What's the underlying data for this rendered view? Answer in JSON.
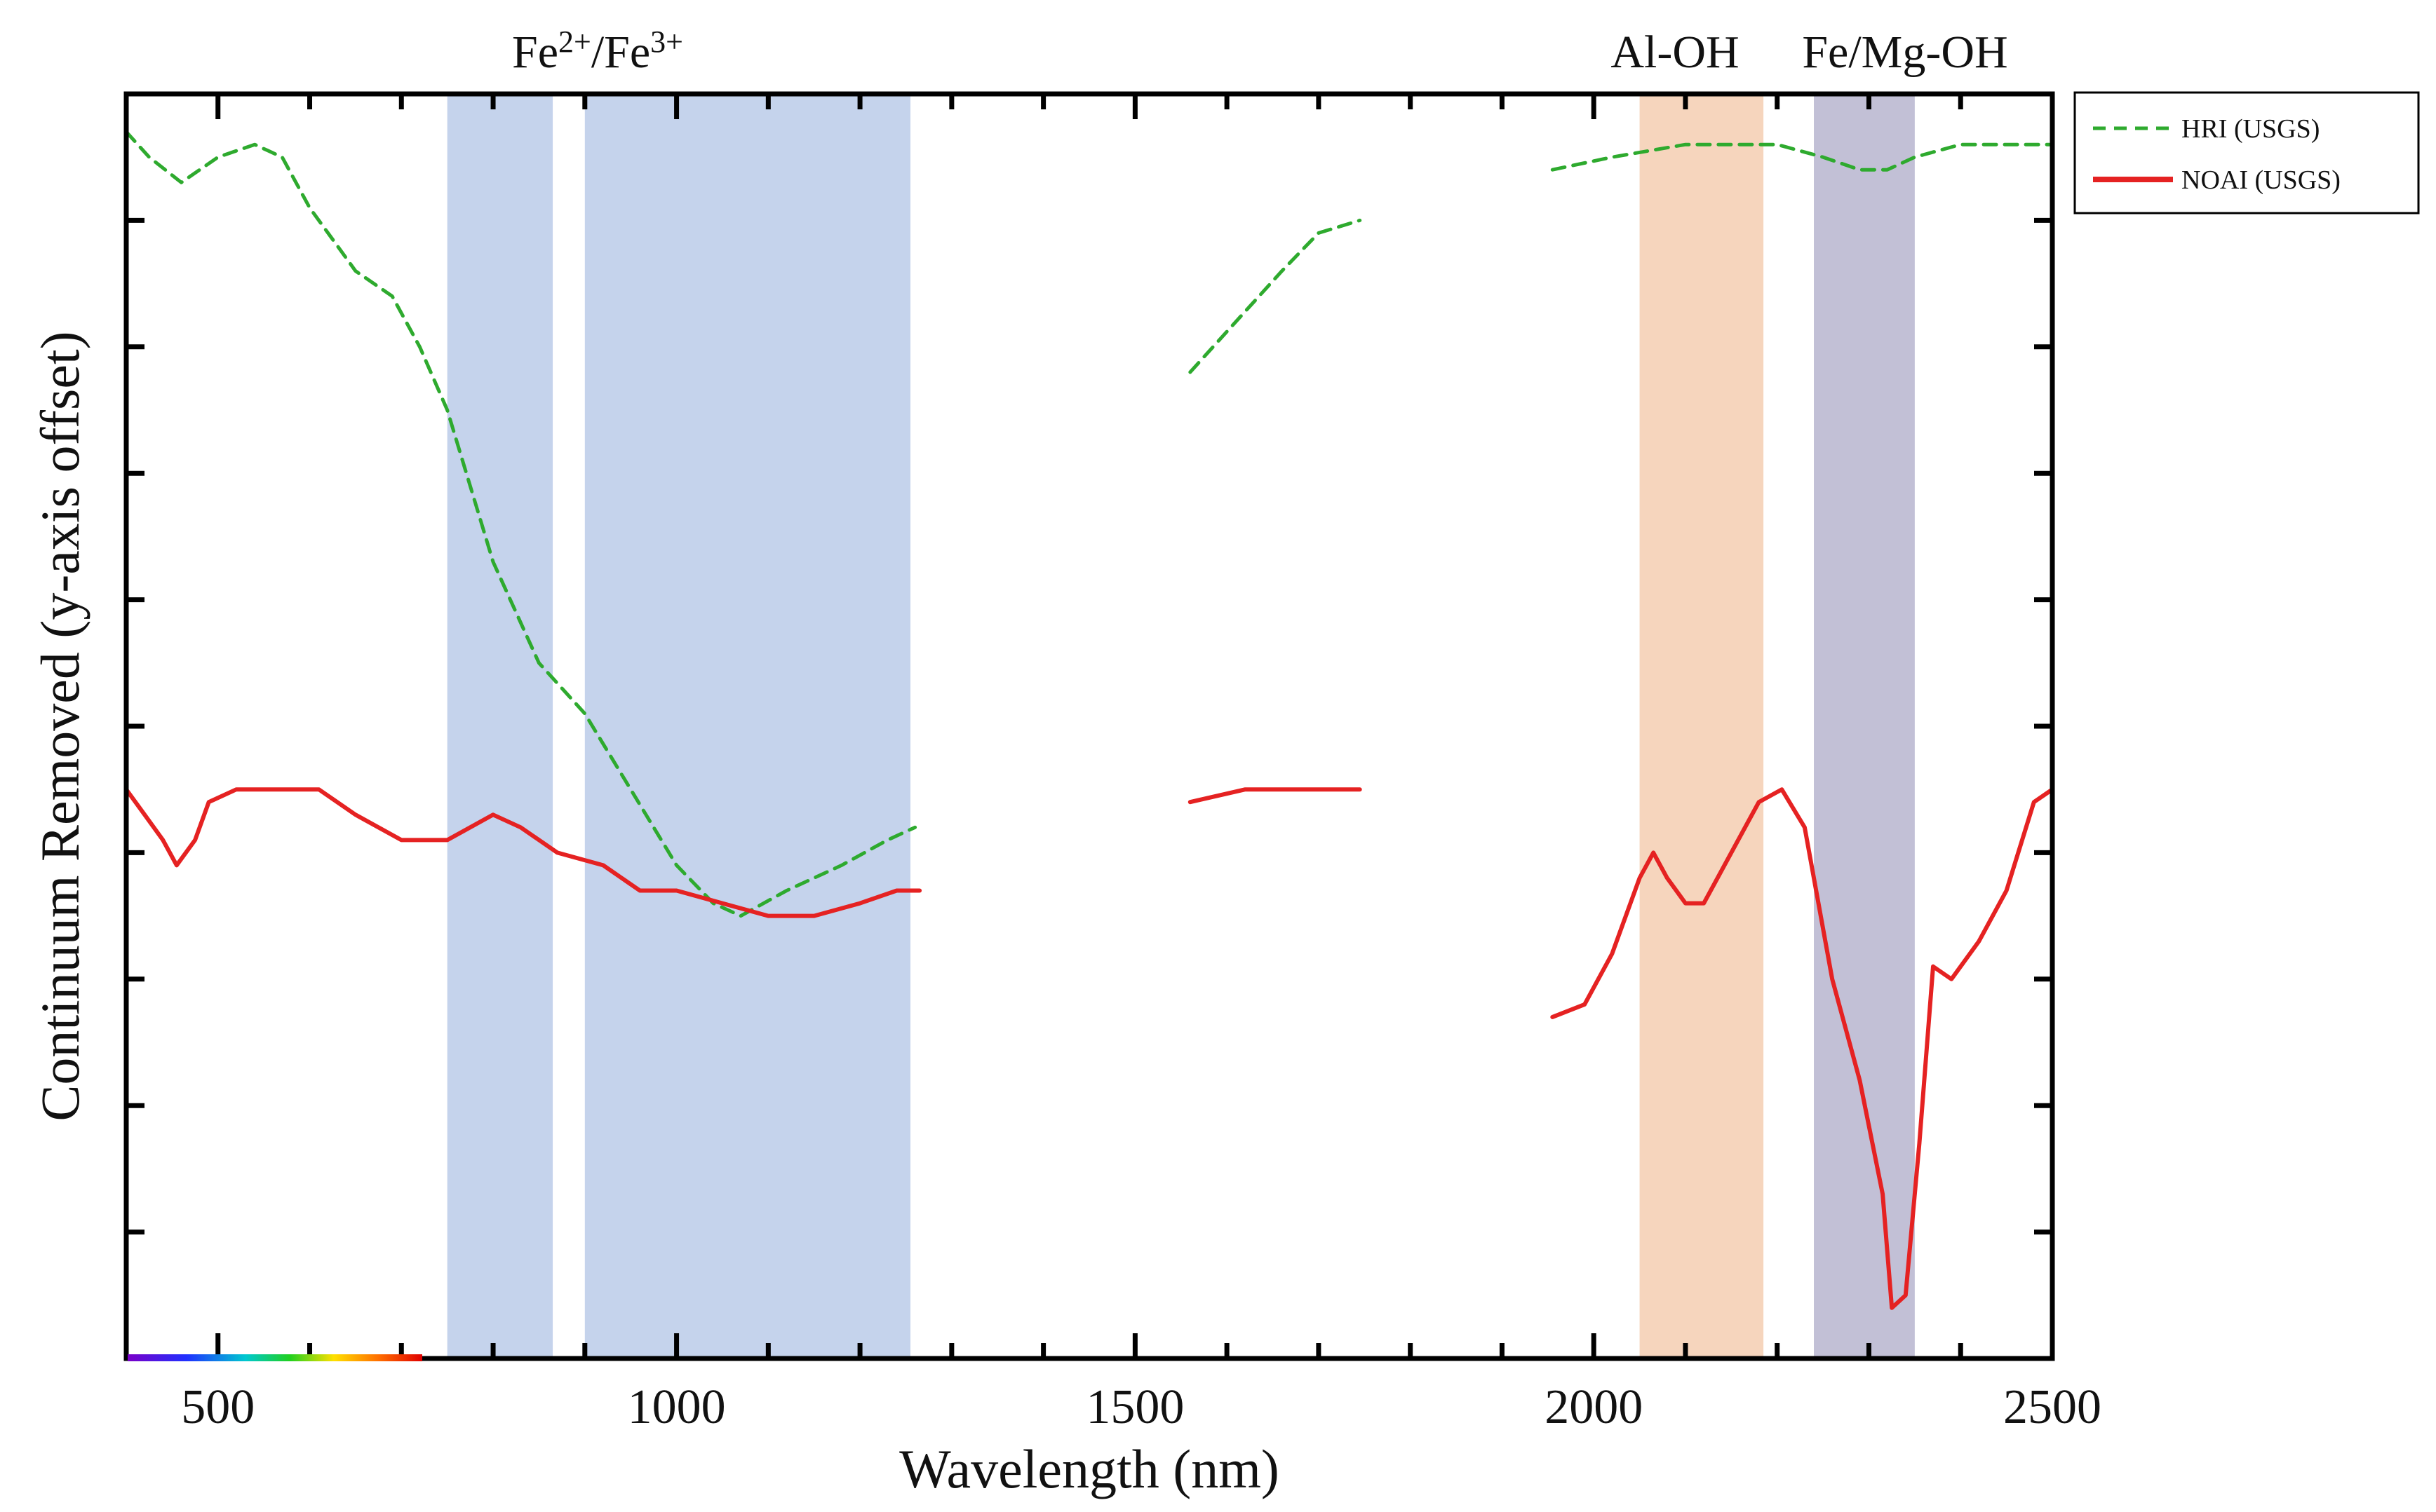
{
  "chart_data": {
    "type": "line",
    "title": "",
    "xlabel": "Wavelength (nm)",
    "ylabel": "Continuum Removed (y-axis offset)",
    "xlim": [
      400,
      2500
    ],
    "ylim": [
      0,
      1
    ],
    "xticks": [
      500,
      1000,
      1500,
      2000,
      2500
    ],
    "grid": false,
    "legend_position": "top-right-outside",
    "bands": [
      {
        "label": "Fe2+/Fe3+",
        "ranges": [
          [
            750,
            865
          ],
          [
            900,
            1255
          ]
        ],
        "color": "#c5d3ec"
      },
      {
        "label": "Al-OH",
        "ranges": [
          [
            2050,
            2185
          ]
        ],
        "color": "#f6d5bd"
      },
      {
        "label": "Fe/Mg-OH",
        "ranges": [
          [
            2240,
            2350
          ]
        ],
        "color": "#c2c0d6"
      }
    ],
    "band_labels": {
      "fe_text": "Fe",
      "fe_sup1": "2+",
      "fe_mid": "/Fe",
      "fe_sup2": "3+",
      "aloh": "Al-OH",
      "femgoh": "Fe/Mg-OH"
    },
    "series": [
      {
        "name": "HRI (USGS)",
        "color": "#2eaa2e",
        "style": "dashed",
        "segments": [
          [
            [
              400,
              0.97
            ],
            [
              425,
              0.95
            ],
            [
              460,
              0.93
            ],
            [
              500,
              0.95
            ],
            [
              540,
              0.96
            ],
            [
              570,
              0.95
            ],
            [
              600,
              0.91
            ],
            [
              630,
              0.88
            ],
            [
              650,
              0.86
            ],
            [
              690,
              0.84
            ],
            [
              720,
              0.8
            ],
            [
              750,
              0.75
            ],
            [
              800,
              0.63
            ],
            [
              850,
              0.55
            ],
            [
              900,
              0.51
            ],
            [
              950,
              0.45
            ],
            [
              1000,
              0.39
            ],
            [
              1040,
              0.36
            ],
            [
              1070,
              0.35
            ],
            [
              1120,
              0.37
            ],
            [
              1180,
              0.39
            ],
            [
              1230,
              0.41
            ],
            [
              1260,
              0.42
            ]
          ],
          [
            [
              1560,
              0.78
            ],
            [
              1610,
              0.82
            ],
            [
              1660,
              0.86
            ],
            [
              1700,
              0.89
            ],
            [
              1745,
              0.9
            ]
          ],
          [
            [
              1955,
              0.94
            ],
            [
              2020,
              0.95
            ],
            [
              2100,
              0.96
            ],
            [
              2150,
              0.96
            ],
            [
              2200,
              0.96
            ],
            [
              2250,
              0.95
            ],
            [
              2290,
              0.94
            ],
            [
              2320,
              0.94
            ],
            [
              2350,
              0.95
            ],
            [
              2400,
              0.96
            ],
            [
              2450,
              0.96
            ],
            [
              2500,
              0.96
            ]
          ]
        ]
      },
      {
        "name": "NOAI (USGS)",
        "color": "#e52222",
        "style": "solid",
        "segments": [
          [
            [
              400,
              0.45
            ],
            [
              420,
              0.43
            ],
            [
              440,
              0.41
            ],
            [
              455,
              0.39
            ],
            [
              475,
              0.41
            ],
            [
              490,
              0.44
            ],
            [
              520,
              0.45
            ],
            [
              570,
              0.45
            ],
            [
              610,
              0.45
            ],
            [
              650,
              0.43
            ],
            [
              700,
              0.41
            ],
            [
              750,
              0.41
            ],
            [
              800,
              0.43
            ],
            [
              830,
              0.42
            ],
            [
              870,
              0.4
            ],
            [
              920,
              0.39
            ],
            [
              960,
              0.37
            ],
            [
              1000,
              0.37
            ],
            [
              1050,
              0.36
            ],
            [
              1100,
              0.35
            ],
            [
              1150,
              0.35
            ],
            [
              1200,
              0.36
            ],
            [
              1240,
              0.37
            ],
            [
              1265,
              0.37
            ]
          ],
          [
            [
              1560,
              0.44
            ],
            [
              1620,
              0.45
            ],
            [
              1680,
              0.45
            ],
            [
              1745,
              0.45
            ]
          ],
          [
            [
              1955,
              0.27
            ],
            [
              1990,
              0.28
            ],
            [
              2020,
              0.32
            ],
            [
              2050,
              0.38
            ],
            [
              2065,
              0.4
            ],
            [
              2080,
              0.38
            ],
            [
              2100,
              0.36
            ],
            [
              2120,
              0.36
            ],
            [
              2150,
              0.4
            ],
            [
              2180,
              0.44
            ],
            [
              2205,
              0.45
            ],
            [
              2230,
              0.42
            ],
            [
              2260,
              0.3
            ],
            [
              2290,
              0.22
            ],
            [
              2315,
              0.13
            ],
            [
              2325,
              0.04
            ],
            [
              2340,
              0.05
            ],
            [
              2355,
              0.17
            ],
            [
              2370,
              0.31
            ],
            [
              2390,
              0.3
            ],
            [
              2420,
              0.33
            ],
            [
              2450,
              0.37
            ],
            [
              2480,
              0.44
            ],
            [
              2500,
              0.45
            ]
          ]
        ]
      }
    ]
  }
}
